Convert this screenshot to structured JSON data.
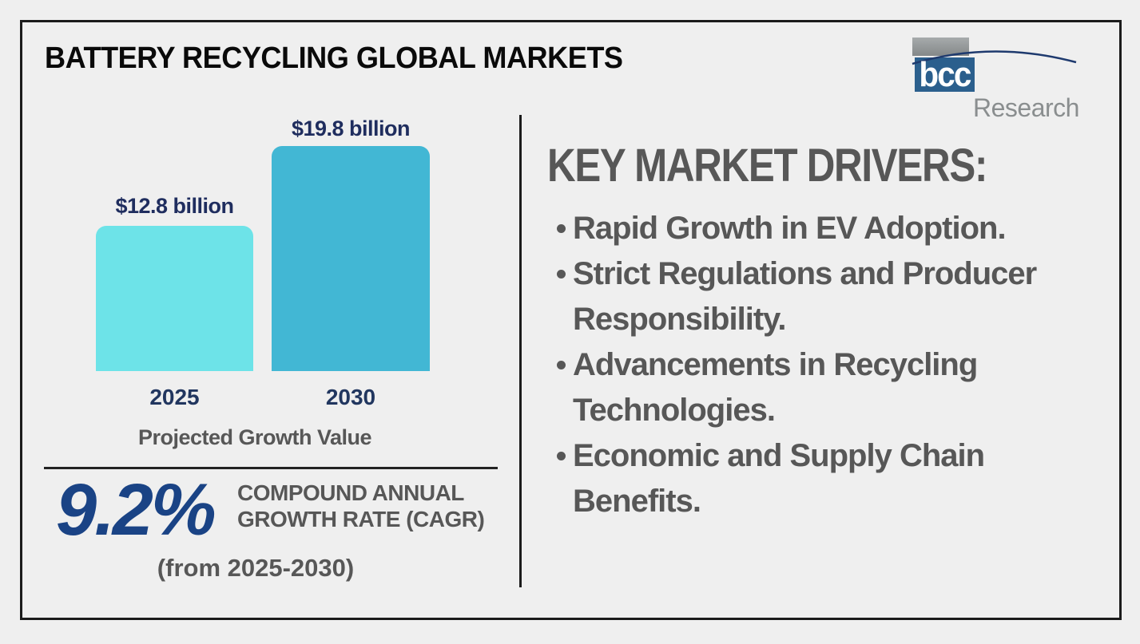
{
  "header": {
    "title": "BATTERY RECYCLING GLOBAL MARKETS"
  },
  "logo": {
    "mark_text": "bcc",
    "name_text": "Research",
    "mark_bg_color": "#2b5f8d",
    "mark_top_color": "#8e9293",
    "name_color": "#8a8e8f",
    "swoosh_color": "#1e3a6e"
  },
  "chart_data": {
    "type": "bar",
    "title": "Projected Growth Value",
    "categories": [
      "2025",
      "2030"
    ],
    "values": [
      12.8,
      19.8
    ],
    "value_labels": [
      "$12.8 billion",
      "$19.8 billion"
    ],
    "unit": "USD billion",
    "ylim": [
      0,
      19.8
    ],
    "grid": false,
    "legend": false,
    "bar_colors": [
      "#6de3e8",
      "#42b7d4"
    ],
    "label_color": "#1f2d5e"
  },
  "cagr": {
    "value": "9.2%",
    "label_line1": "COMPOUND ANNUAL",
    "label_line2": "GROWTH RATE (CAGR)",
    "period": "(from 2025-2030)",
    "value_color": "#1a4385"
  },
  "drivers": {
    "heading": "KEY MARKET DRIVERS:",
    "items": [
      {
        "lines": [
          "Rapid Growth in EV Adoption."
        ]
      },
      {
        "lines": [
          "Strict Regulations and Producer",
          "Responsibility."
        ]
      },
      {
        "lines": [
          "Advancements in Recycling",
          "Technologies."
        ]
      },
      {
        "lines": [
          "Economic and Supply Chain",
          "Benefits."
        ]
      }
    ]
  },
  "colors": {
    "background": "#efefef",
    "frame_border": "#1b1b1b",
    "text_gray": "#575757",
    "text_navy": "#1f2d5e",
    "title_black": "#0a0a0a"
  }
}
